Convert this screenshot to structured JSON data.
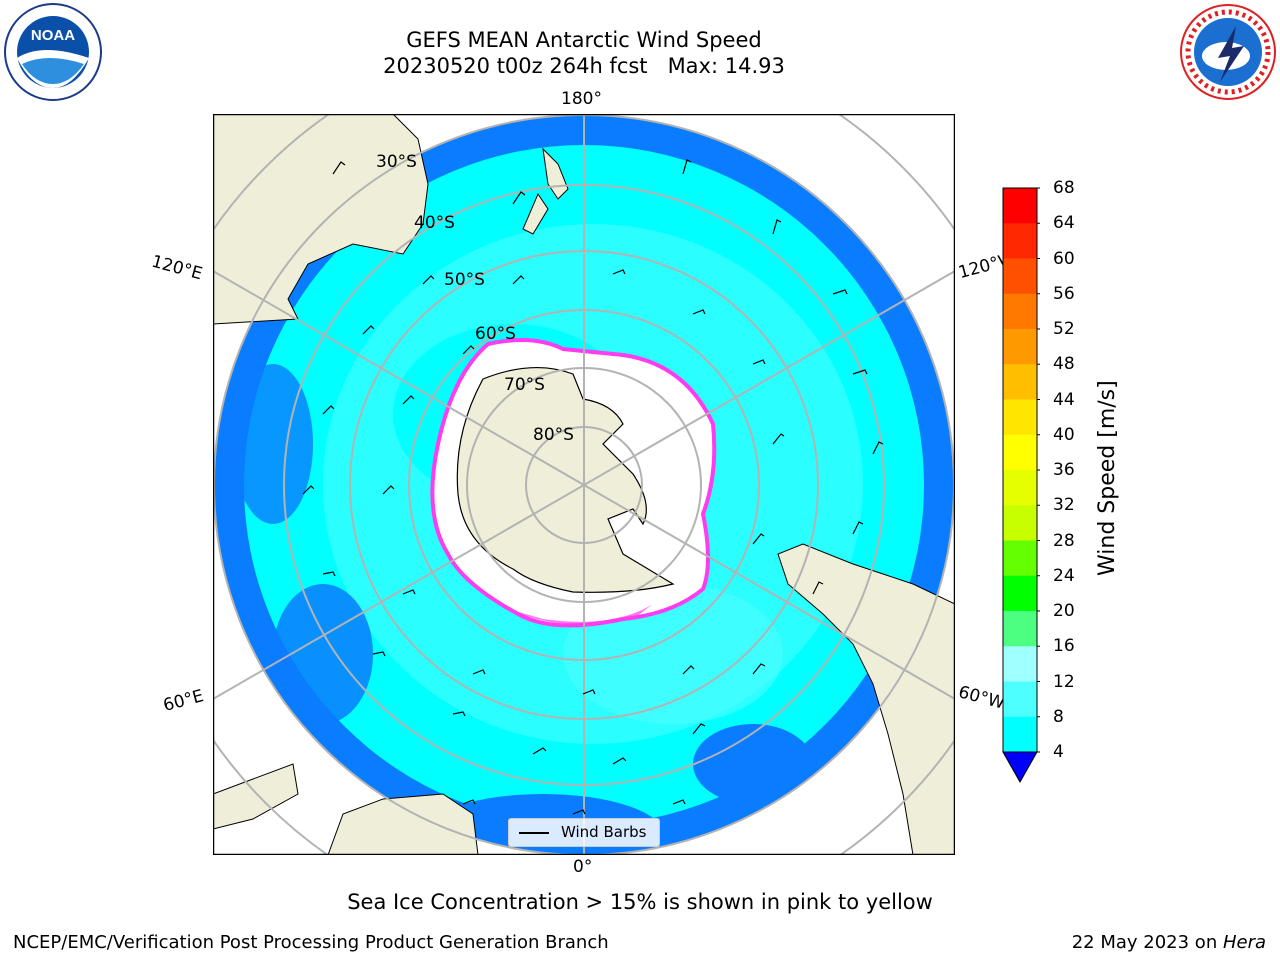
{
  "title": {
    "line1": "GEFS MEAN Antarctic Wind Speed",
    "line2": "20230520 t00z 264h fcst   Max: 14.93"
  },
  "logos": {
    "left": {
      "icon": "noaa-logo",
      "text": "NOAA"
    },
    "right": {
      "icon": "nws-logo",
      "text": "NATIONAL WEATHER SERVICE"
    }
  },
  "map": {
    "projection": "south-polar-stereographic",
    "longitude_labels": [
      "180°",
      "120°E",
      "120°W",
      "60°E",
      "60°W",
      "0°"
    ],
    "latitude_labels": [
      "30°S",
      "40°S",
      "50°S",
      "60°S",
      "70°S",
      "80°S"
    ],
    "colors": {
      "land": "#efeed8",
      "wind_4_8": "#0a7cff",
      "wind_8_12": "#00ffff",
      "wind_12_16": "#4dfdff",
      "sea_ice": "#ffffff",
      "sea_ice_edge": "#ff3cf0",
      "gridline": "#b3b3b3"
    }
  },
  "legend": {
    "label": "Wind Barbs"
  },
  "colorbar": {
    "label": "Wind Speed [m/s]",
    "ticks": [
      "68",
      "64",
      "60",
      "56",
      "52",
      "48",
      "44",
      "40",
      "36",
      "32",
      "28",
      "24",
      "20",
      "16",
      "12",
      "8",
      "4"
    ],
    "colors": [
      "#ff0000",
      "#ff2800",
      "#ff5000",
      "#ff7800",
      "#ff9900",
      "#ffbe00",
      "#ffe600",
      "#ffff00",
      "#e6ff00",
      "#c8ff00",
      "#64ff00",
      "#00ff00",
      "#4dff80",
      "#a0ffff",
      "#4dffff",
      "#00ffff",
      "#0080ff"
    ],
    "min_color": "#0000ff"
  },
  "caption": "Sea Ice Concentration > 15% is shown in pink to yellow",
  "footer": {
    "left": "NCEP/EMC/Verification Post Processing Product Generation Branch",
    "right_date": "22 May 2023 on ",
    "right_machine": "Hera"
  }
}
